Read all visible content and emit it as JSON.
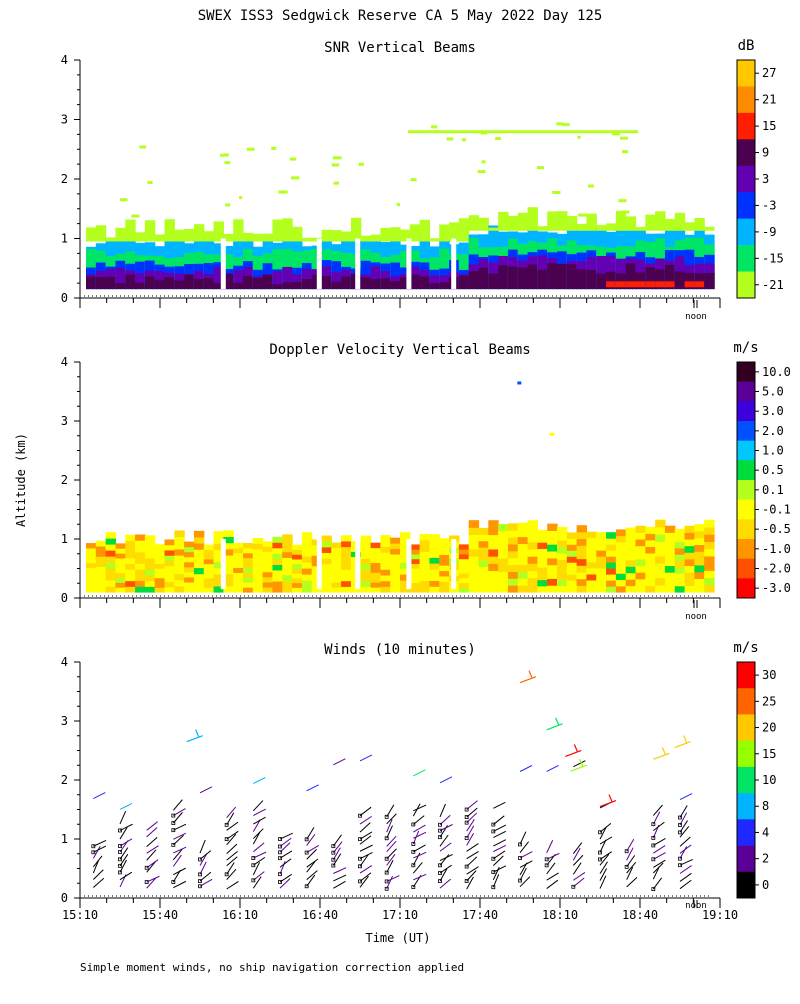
{
  "page_title": "SWEX ISS3 Sedgwick Reserve CA   5 May 2022 Day 125",
  "y_axis_label": "Altitude (km)",
  "x_axis_label": "Time (UT)",
  "footnote": "Simple moment winds, no ship navigation correction applied",
  "noon_label": "noon",
  "chart_data": [
    {
      "type": "heatmap",
      "title": "SNR Vertical Beams",
      "ylabel": "Altitude (km)",
      "ylim": [
        0,
        4
      ],
      "yticks": [
        0,
        1,
        2,
        3,
        4
      ],
      "xlim": [
        "15:10",
        "19:10"
      ],
      "colorbar": {
        "unit": "dB",
        "levels": [
          "27",
          "21",
          "15",
          "9",
          "3",
          "-3",
          "-9",
          "-15",
          "-21"
        ],
        "colors": [
          "#ffc800",
          "#ff8c00",
          "#ff1e00",
          "#4b0050",
          "#6400b4",
          "#0032ff",
          "#00b4ff",
          "#00e664",
          "#b4ff1e"
        ]
      }
    },
    {
      "type": "heatmap",
      "title": "Doppler Velocity Vertical Beams",
      "ylabel": "Altitude (km)",
      "ylim": [
        0,
        4
      ],
      "yticks": [
        0,
        1,
        2,
        3,
        4
      ],
      "xlim": [
        "15:10",
        "19:10"
      ],
      "colorbar": {
        "unit": "m/s",
        "levels": [
          "10.0",
          "5.0",
          "3.0",
          "2.0",
          "1.0",
          "0.5",
          "0.1",
          "-0.1",
          "-0.5",
          "-1.0",
          "-2.0",
          "-3.0"
        ],
        "colors": [
          "#32001e",
          "#5a0096",
          "#3c00dc",
          "#0050ff",
          "#00c8ff",
          "#00dc3c",
          "#b4ff1e",
          "#ffff00",
          "#ffdc00",
          "#ff9600",
          "#ff5000",
          "#ff0000"
        ]
      }
    },
    {
      "type": "scatter",
      "title": "Winds (10 minutes)",
      "ylabel": "Altitude (km)",
      "xlabel": "Time (UT)",
      "ylim": [
        0,
        4
      ],
      "yticks": [
        0,
        1,
        2,
        3,
        4
      ],
      "xticks": [
        "15:10",
        "15:40",
        "16:10",
        "16:40",
        "17:10",
        "17:40",
        "18:10",
        "18:40",
        "19:10"
      ],
      "colorbar": {
        "unit": "m/s",
        "levels": [
          "30",
          "25",
          "20",
          "15",
          "10",
          "8",
          "4",
          "2",
          "0"
        ],
        "colors": [
          "#ff0000",
          "#ff6400",
          "#ffc800",
          "#96ff00",
          "#00e664",
          "#00b4ff",
          "#1e28ff",
          "#5a0096",
          "#000000"
        ]
      }
    }
  ]
}
